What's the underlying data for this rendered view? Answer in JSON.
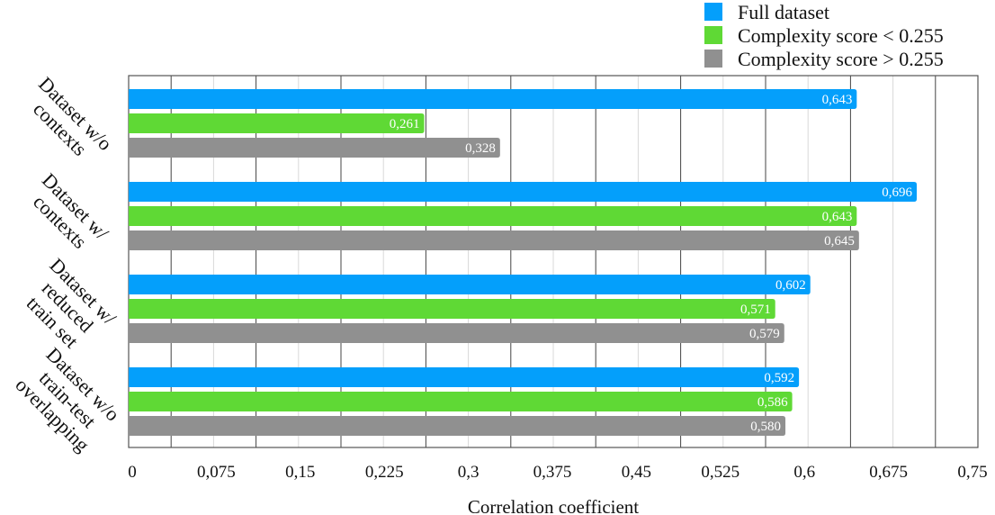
{
  "chart_data": {
    "type": "bar",
    "orientation": "horizontal",
    "categories": [
      [
        "Dataset w/o",
        "contexts"
      ],
      [
        "Dataset w/",
        "contexts"
      ],
      [
        "Dataset w/",
        "reduced",
        "train set"
      ],
      [
        "Dataset w/o",
        "train-test",
        "overlapping"
      ]
    ],
    "series": [
      {
        "name": "Full dataset",
        "color": "#049ffb",
        "values": [
          0.643,
          0.696,
          0.602,
          0.592
        ],
        "labels": [
          "0,643",
          "0,696",
          "0,602",
          "0,592"
        ]
      },
      {
        "name": "Complexity score < 0.255",
        "color": "#5fd935",
        "values": [
          0.261,
          0.643,
          0.571,
          0.586
        ],
        "labels": [
          "0,261",
          "0,643",
          "0,571",
          "0,586"
        ]
      },
      {
        "name": "Complexity score > 0.255",
        "color": "#909090",
        "values": [
          0.328,
          0.645,
          0.579,
          0.58
        ],
        "labels": [
          "0,328",
          "0,645",
          "0,579",
          "0,580"
        ]
      }
    ],
    "xlabel": "Correlation coefficient",
    "xlim": [
      0,
      0.75
    ],
    "xticks": [
      "0",
      "0,075",
      "0,15",
      "0,225",
      "0,3",
      "0,375",
      "0,45",
      "0,525",
      "0,6",
      "0,675",
      "0,75"
    ],
    "grid": true,
    "legend": "top-right"
  }
}
